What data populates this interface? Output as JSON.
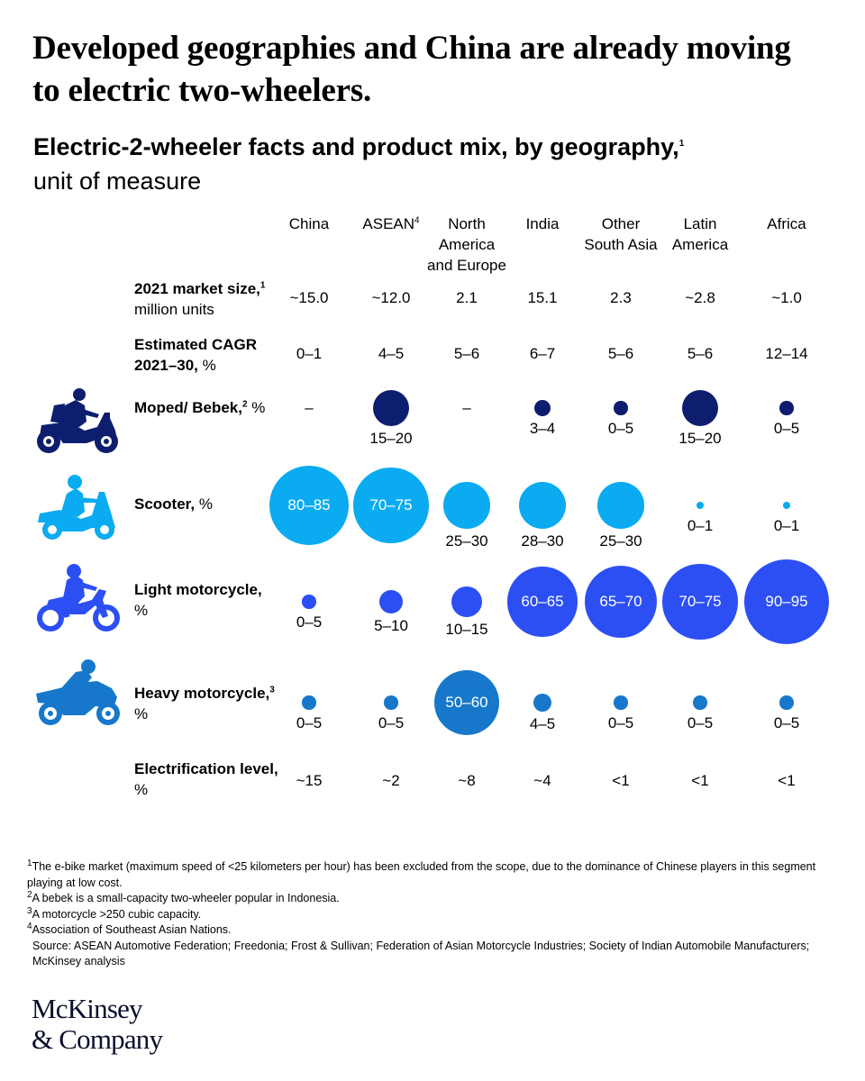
{
  "header": {
    "title": "Developed geographies and China are already moving to electric two-wheelers.",
    "subtitle": "Electric-2-wheeler facts and product mix, by geography,",
    "subtitle_sup": "1",
    "unit": "unit of measure"
  },
  "colors": {
    "moped": "#0d1e6e",
    "scooter": "#0aabf0",
    "light_motorcycle": "#2c4ff4",
    "heavy_motorcycle": "#1778cb"
  },
  "chart_data": {
    "type": "table",
    "columns": [
      {
        "lines": [
          "China"
        ]
      },
      {
        "lines": [
          "ASEAN"
        ],
        "sup": "4"
      },
      {
        "lines": [
          "North",
          "America",
          "and Europe"
        ]
      },
      {
        "lines": [
          "India"
        ]
      },
      {
        "lines": [
          "Other",
          "South Asia"
        ]
      },
      {
        "lines": [
          "Latin",
          "America"
        ]
      },
      {
        "lines": [
          "Africa"
        ]
      }
    ],
    "rows": [
      {
        "id": "market_size",
        "label_bold": "2021 market size,",
        "label_sup": "1",
        "label_rest": "million units",
        "kind": "text",
        "values": [
          "~15.0",
          "~12.0",
          "2.1",
          "15.1",
          "2.3",
          "~2.8",
          "~1.0"
        ]
      },
      {
        "id": "cagr",
        "label_bold": "Estimated CAGR 2021–30,",
        "label_sup": "",
        "label_rest": "%",
        "kind": "text",
        "values": [
          "0–1",
          "4–5",
          "5–6",
          "6–7",
          "5–6",
          "5–6",
          "12–14"
        ]
      },
      {
        "id": "moped",
        "label_bold": "Moped/ Bebek,",
        "label_sup": "2",
        "label_rest": "%",
        "kind": "bubble",
        "icon": "moped-rider-icon",
        "values": [
          "–",
          "15–20",
          "–",
          "3–4",
          "0–5",
          "15–20",
          "0–5"
        ],
        "magnitudes": [
          0,
          17.5,
          0,
          3.5,
          2.5,
          17.5,
          2.5
        ]
      },
      {
        "id": "scooter",
        "label_bold": "Scooter,",
        "label_sup": "",
        "label_rest": "%",
        "kind": "bubble",
        "icon": "scooter-rider-icon",
        "values": [
          "80–85",
          "70–75",
          "25–30",
          "28–30",
          "25–30",
          "0–1",
          "0–1"
        ],
        "magnitudes": [
          82.5,
          72.5,
          27.5,
          29,
          27.5,
          0.5,
          0.5
        ]
      },
      {
        "id": "light_motorcycle",
        "label_bold": "Light motorcycle,",
        "label_sup": "",
        "label_rest": "%",
        "kind": "bubble",
        "icon": "dirt-bike-rider-icon",
        "values": [
          "0–5",
          "5–10",
          "10–15",
          "60–65",
          "65–70",
          "70–75",
          "90–95"
        ],
        "magnitudes": [
          2.5,
          7.5,
          12.5,
          62.5,
          67.5,
          72.5,
          92.5
        ]
      },
      {
        "id": "heavy_motorcycle",
        "label_bold": "Heavy motorcycle,",
        "label_sup": "3",
        "label_rest": "%",
        "kind": "bubble",
        "icon": "sport-bike-rider-icon",
        "values": [
          "0–5",
          "0–5",
          "50–60",
          "4–5",
          "0–5",
          "0–5",
          "0–5"
        ],
        "magnitudes": [
          2.5,
          2.5,
          55,
          4.5,
          2.5,
          2.5,
          2.5
        ]
      },
      {
        "id": "electrification",
        "label_bold": "Electrification level,",
        "label_sup": "",
        "label_rest": "%",
        "kind": "text",
        "values": [
          "~15",
          "~2",
          "~8",
          "~4",
          "<1",
          "<1",
          "<1"
        ]
      }
    ]
  },
  "footnotes": [
    {
      "sup": "1",
      "text": "The e-bike market (maximum speed of <25 kilometers per hour) has been excluded from the scope, due to the dominance of Chinese players in this segment playing at low cost."
    },
    {
      "sup": "2",
      "text": "A bebek is a small-capacity two-wheeler popular in Indonesia."
    },
    {
      "sup": "3",
      "text": "A motorcycle >250 cubic capacity."
    },
    {
      "sup": "4",
      "text": "Association of Southeast Asian Nations."
    }
  ],
  "source": "Source: ASEAN Automotive Federation; Freedonia; Frost & Sullivan; Federation of Asian Motorcycle Industries; Society of Indian Automobile Manufacturers; McKinsey analysis",
  "logo": {
    "line1": "McKinsey",
    "line2": "& Company"
  }
}
